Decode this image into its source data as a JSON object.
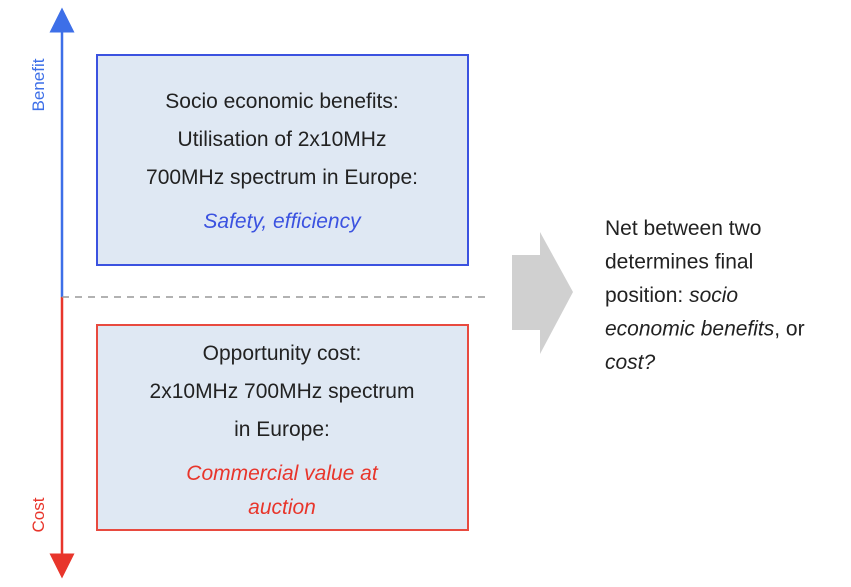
{
  "axis": {
    "top_label": "Benefit",
    "bottom_label": "Cost"
  },
  "benefit_box": {
    "lines": [
      "Socio economic benefits:",
      "Utilisation of 2x10MHz",
      "700MHz spectrum in Europe:"
    ],
    "highlight": [
      "Safety, efficiency"
    ]
  },
  "cost_box": {
    "lines": [
      "Opportunity cost:",
      "2x10MHz 700MHz spectrum",
      "in Europe:"
    ],
    "highlight": [
      "Commercial value at",
      "auction"
    ]
  },
  "net_text": {
    "lines": [
      [
        {
          "text": "Net between two",
          "italic": false
        }
      ],
      [
        {
          "text": "determines final",
          "italic": false
        }
      ],
      [
        {
          "text": "position: ",
          "italic": false
        },
        {
          "text": "socio",
          "italic": true
        }
      ],
      [
        {
          "text": "economic benefits",
          "italic": true
        },
        {
          "text": ", or",
          "italic": false
        }
      ],
      [
        {
          "text": "cost?",
          "italic": true
        }
      ]
    ]
  }
}
